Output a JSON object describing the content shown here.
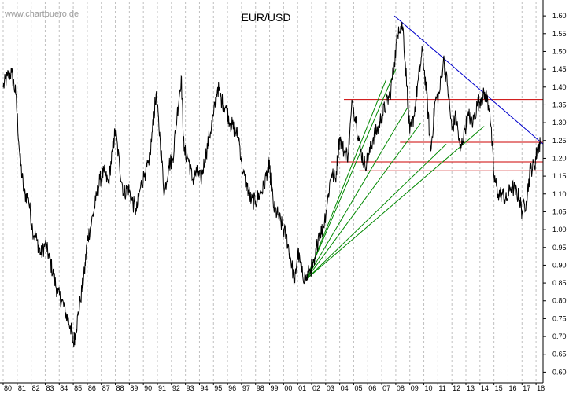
{
  "watermark": "www.chartbuero.de",
  "chart_data": {
    "type": "line",
    "title": "EUR/USD",
    "xlabel": "",
    "ylabel": "",
    "xlim": [
      1980,
      2018.5
    ],
    "ylim": [
      0.57,
      1.64
    ],
    "grid": {
      "vertical": true,
      "horizontal": false,
      "style": "dashed"
    },
    "y_ticks": [
      "1.60",
      "1.55",
      "1.50",
      "1.45",
      "1.40",
      "1.35",
      "1.30",
      "1.25",
      "1.20",
      "1.15",
      "1.10",
      "1.05",
      "1.00",
      "0.95",
      "0.90",
      "0.85",
      "0.80",
      "0.75",
      "0.70",
      "0.65",
      "0.60"
    ],
    "x_ticks": [
      "80",
      "81",
      "82",
      "83",
      "84",
      "85",
      "86",
      "87",
      "88",
      "89",
      "90",
      "91",
      "92",
      "93",
      "94",
      "95",
      "96",
      "97",
      "98",
      "99",
      "00",
      "01",
      "02",
      "03",
      "04",
      "05",
      "06",
      "07",
      "08",
      "09",
      "10",
      "11",
      "12",
      "13",
      "14",
      "15",
      "16",
      "17",
      "18"
    ],
    "colors": {
      "price": "#000000",
      "support_resistance": "#cc0000",
      "downtrend": "#0000cc",
      "fan": "#008800",
      "grid": "#c0c0c0"
    },
    "series": [
      {
        "x": [
          1980.0,
          1980.3,
          1980.6,
          1980.9,
          1981.2,
          1981.5,
          1981.8,
          1982.1,
          1982.4,
          1982.7,
          1983.0,
          1983.3,
          1983.6,
          1983.9,
          1984.2,
          1984.5,
          1984.8,
          1985.0,
          1985.2,
          1985.5,
          1985.8,
          1986.0,
          1986.3,
          1986.6,
          1986.9,
          1987.2,
          1987.5,
          1987.8,
          1988.0,
          1988.3,
          1988.6,
          1988.9,
          1989.2,
          1989.5,
          1989.8,
          1990.1,
          1990.4,
          1990.7,
          1990.9,
          1991.2,
          1991.5,
          1991.8,
          1992.1,
          1992.4,
          1992.7,
          1992.9,
          1993.2,
          1993.5,
          1993.8,
          1994.1,
          1994.4,
          1994.7,
          1995.0,
          1995.3,
          1995.6,
          1995.9,
          1996.2,
          1996.5,
          1996.8,
          1997.1,
          1997.4,
          1997.7,
          1998.0,
          1998.3,
          1998.6,
          1998.9,
          1999.0,
          1999.3,
          1999.6,
          1999.9,
          2000.2,
          2000.5,
          2000.8,
          2001.0,
          2001.3,
          2001.6,
          2001.9,
          2002.2,
          2002.5,
          2002.8,
          2003.1,
          2003.4,
          2003.7,
          2004.0,
          2004.3,
          2004.6,
          2004.9,
          2005.2,
          2005.5,
          2005.8,
          2006.1,
          2006.4,
          2006.7,
          2007.0,
          2007.3,
          2007.6,
          2007.9,
          2008.2,
          2008.5,
          2008.8,
          2009.0,
          2009.3,
          2009.6,
          2009.9,
          2010.2,
          2010.5,
          2010.8,
          2011.1,
          2011.4,
          2011.7,
          2012.0,
          2012.3,
          2012.6,
          2012.9,
          2013.2,
          2013.5,
          2013.8,
          2014.1,
          2014.4,
          2014.7,
          2015.0,
          2015.3,
          2015.6,
          2015.9,
          2016.2,
          2016.5,
          2016.8,
          2017.0,
          2017.3,
          2017.6,
          2017.9,
          2018.1,
          2018.3
        ],
        "values": [
          1.4,
          1.43,
          1.44,
          1.38,
          1.2,
          1.1,
          1.09,
          1.0,
          0.97,
          0.93,
          0.96,
          0.92,
          0.87,
          0.82,
          0.8,
          0.76,
          0.73,
          0.68,
          0.72,
          0.8,
          0.88,
          0.97,
          1.02,
          1.08,
          1.14,
          1.16,
          1.13,
          1.22,
          1.28,
          1.18,
          1.1,
          1.12,
          1.08,
          1.05,
          1.12,
          1.16,
          1.18,
          1.3,
          1.38,
          1.25,
          1.1,
          1.18,
          1.2,
          1.32,
          1.43,
          1.22,
          1.2,
          1.14,
          1.16,
          1.14,
          1.2,
          1.26,
          1.32,
          1.4,
          1.36,
          1.34,
          1.3,
          1.28,
          1.26,
          1.16,
          1.12,
          1.08,
          1.08,
          1.1,
          1.12,
          1.18,
          1.17,
          1.06,
          1.04,
          1.01,
          0.98,
          0.92,
          0.85,
          0.94,
          0.88,
          0.86,
          0.89,
          0.9,
          0.99,
          1.0,
          1.07,
          1.16,
          1.14,
          1.26,
          1.22,
          1.21,
          1.36,
          1.3,
          1.22,
          1.18,
          1.21,
          1.26,
          1.28,
          1.32,
          1.35,
          1.38,
          1.47,
          1.57,
          1.57,
          1.4,
          1.27,
          1.32,
          1.42,
          1.5,
          1.38,
          1.22,
          1.36,
          1.38,
          1.48,
          1.4,
          1.28,
          1.32,
          1.22,
          1.28,
          1.32,
          1.3,
          1.35,
          1.37,
          1.38,
          1.34,
          1.15,
          1.1,
          1.1,
          1.08,
          1.12,
          1.11,
          1.09,
          1.05,
          1.08,
          1.17,
          1.18,
          1.23,
          1.24
        ]
      }
    ],
    "annotations": {
      "horizontal_lines": [
        {
          "y": 1.365,
          "x_start": 2004.3,
          "x_end": 2018.5
        },
        {
          "y": 1.245,
          "x_start": 2008.3,
          "x_end": 2018.5
        },
        {
          "y": 1.19,
          "x_start": 2003.4,
          "x_end": 2018.5
        },
        {
          "y": 1.165,
          "x_start": 2005.4,
          "x_end": 2018.5
        }
      ],
      "trend_line": {
        "x1": 2007.9,
        "y1": 1.6,
        "x2": 2018.5,
        "y2": 1.24
      },
      "fan_origin": {
        "x": 2001.6,
        "y": 0.86
      },
      "fan_targets": [
        {
          "x": 2007.3,
          "y": 1.42
        },
        {
          "x": 2008.0,
          "y": 1.45
        },
        {
          "x": 2008.8,
          "y": 1.34
        },
        {
          "x": 2009.8,
          "y": 1.3
        },
        {
          "x": 2011.6,
          "y": 1.24
        },
        {
          "x": 2014.3,
          "y": 1.29
        }
      ]
    }
  }
}
